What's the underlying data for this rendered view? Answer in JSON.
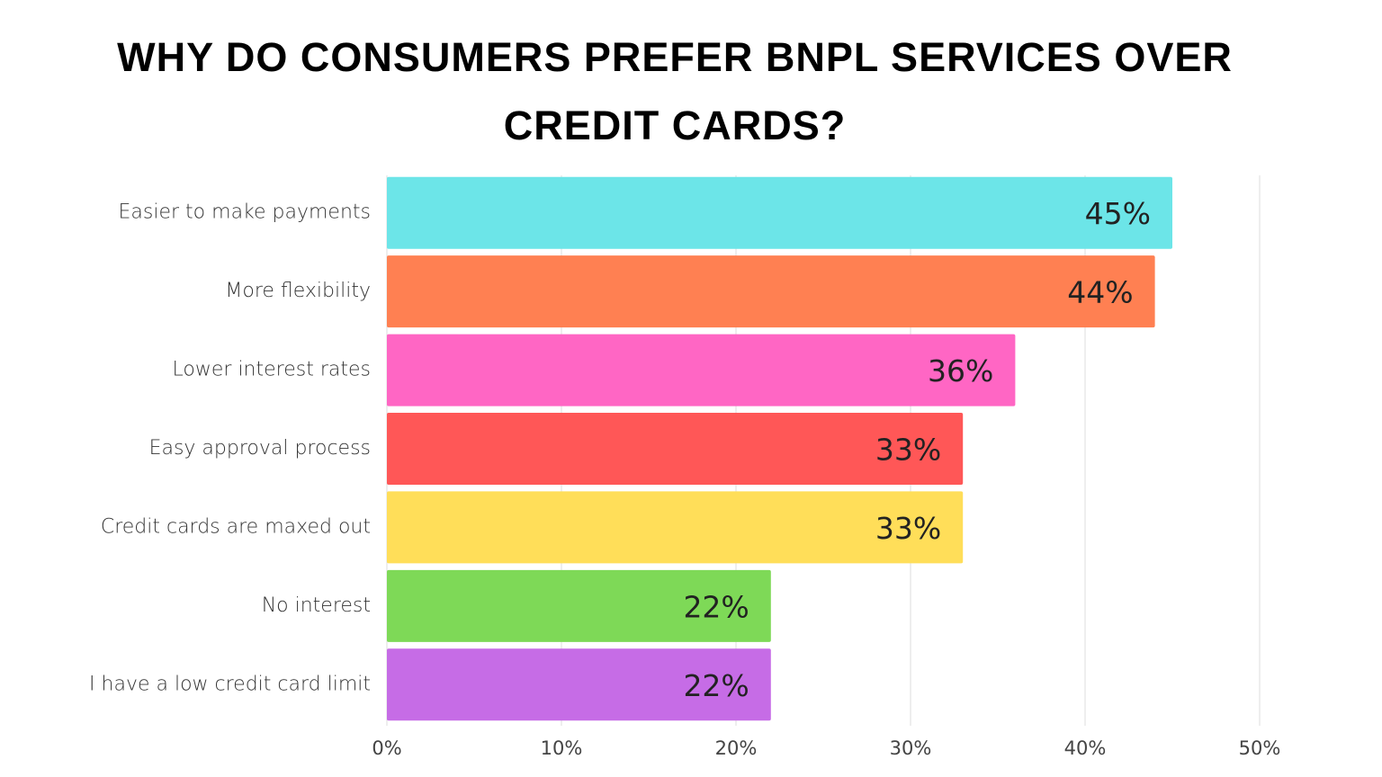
{
  "chart_data": {
    "type": "bar",
    "orientation": "horizontal",
    "title": "WHY DO CONSUMERS PREFER BNPL SERVICES OVER CREDIT CARDS?",
    "categories": [
      "Easier to make payments",
      "More flexibility",
      "Lower interest rates",
      "Easy approval process",
      "Credit cards are maxed out",
      "No interest",
      "I have a low credit card limit"
    ],
    "values": [
      45,
      44,
      36,
      33,
      33,
      22,
      22
    ],
    "value_labels": [
      "45%",
      "44%",
      "36%",
      "33%",
      "33%",
      "22%",
      "22%"
    ],
    "colors": [
      "#6ce5e8",
      "#ff8052",
      "#ff66c4",
      "#ff5757",
      "#ffde59",
      "#7ed957",
      "#c66ce6"
    ],
    "xlim": [
      0,
      50
    ],
    "xticks": [
      {
        "value": 0,
        "label": "0%"
      },
      {
        "value": 10,
        "label": "10%"
      },
      {
        "value": 20,
        "label": "20%"
      },
      {
        "value": 30,
        "label": "30%"
      },
      {
        "value": 40,
        "label": "40%"
      },
      {
        "value": 50,
        "label": "50%"
      }
    ],
    "grid": true
  }
}
